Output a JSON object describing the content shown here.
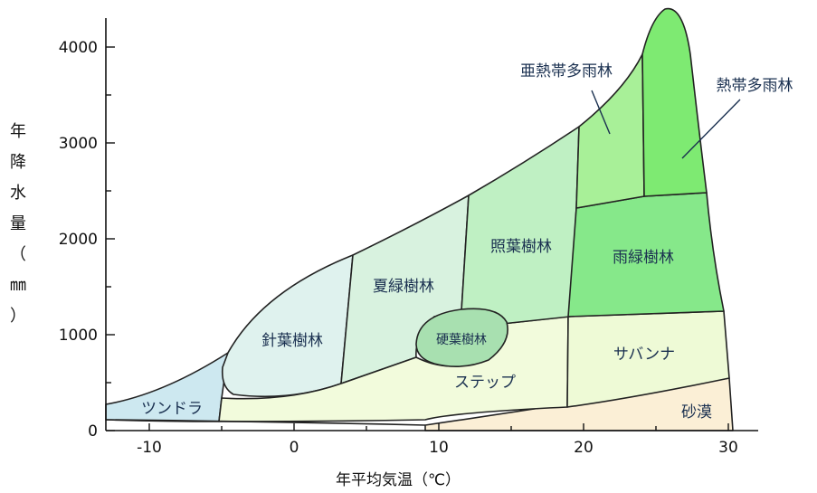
{
  "diagram": {
    "x_axis": {
      "title": "年平均気温（℃）",
      "ticks": [
        "-10",
        "0",
        "10",
        "20",
        "30"
      ]
    },
    "y_axis": {
      "title_chars": [
        "年",
        "降",
        "水",
        "量",
        "（",
        "㎜",
        "）"
      ],
      "ticks": [
        "0",
        "1000",
        "2000",
        "3000",
        "4000"
      ]
    },
    "regions": {
      "tundra": "ツンドラ",
      "boreal": "針葉樹林",
      "deciduous": "夏緑樹林",
      "laurel": "照葉樹林",
      "sclerophyll": "硬葉樹林",
      "steppe": "ステップ",
      "savanna": "サバンナ",
      "desert": "砂漠",
      "raingreen": "雨緑樹林",
      "subtropical": "亜熱帯多雨林",
      "tropical": "熱帯多雨林"
    },
    "colors": {
      "tundra": "#cde8f0",
      "boreal": "#dff2ee",
      "deciduous": "#d8f2df",
      "laurel": "#bff0c3",
      "sclerophyll": "#a8e0b0",
      "steppe": "#f2fbdc",
      "savanna": "#eefad6",
      "desert": "#fbefd6",
      "raingreen": "#86e88a",
      "subtropical": "#a8f098",
      "tropical": "#7eea72"
    }
  }
}
